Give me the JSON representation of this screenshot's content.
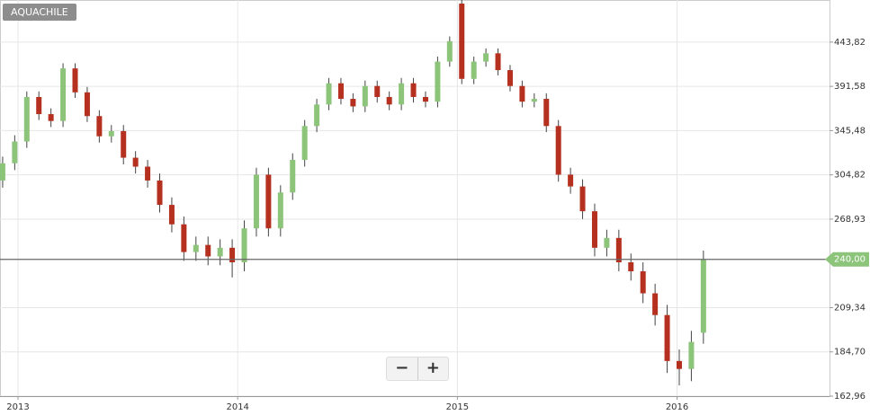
{
  "chart_data": {
    "type": "candlestick",
    "title": "AQUACHILE",
    "log_y": true,
    "grid": true,
    "up_color": "#8cc47a",
    "down_color": "#b5301f",
    "last_color": "#8cc47a",
    "xlim": [
      2012.918,
      2016.694
    ],
    "xticks": [
      2013,
      2014,
      2015,
      2016
    ],
    "ylim": [
      162.96,
      500
    ],
    "yticks": [
      {
        "value": 162.96,
        "label": "162,96"
      },
      {
        "value": 184.7,
        "label": "184,70"
      },
      {
        "value": 209.34,
        "label": "209,34"
      },
      {
        "value": 268.93,
        "label": "268,93"
      },
      {
        "value": 304.82,
        "label": "304,82"
      },
      {
        "value": 345.48,
        "label": "345,48"
      },
      {
        "value": 391.58,
        "label": "391,58"
      },
      {
        "value": 443.82,
        "label": "443,82"
      }
    ],
    "last": {
      "value": 240,
      "label": "240,00"
    },
    "x": [
      2012.93,
      2012.985,
      2013.04,
      2013.095,
      2013.15,
      2013.205,
      2013.26,
      2013.315,
      2013.37,
      2013.425,
      2013.48,
      2013.535,
      2013.59,
      2013.645,
      2013.7,
      2013.755,
      2013.81,
      2013.865,
      2013.92,
      2013.975,
      2014.03,
      2014.085,
      2014.14,
      2014.195,
      2014.25,
      2014.305,
      2014.36,
      2014.415,
      2014.47,
      2014.525,
      2014.58,
      2014.635,
      2014.69,
      2014.745,
      2014.8,
      2014.855,
      2014.91,
      2014.965,
      2015.02,
      2015.075,
      2015.13,
      2015.185,
      2015.24,
      2015.295,
      2015.35,
      2015.405,
      2015.46,
      2015.515,
      2015.57,
      2015.625,
      2015.68,
      2015.735,
      2015.79,
      2015.845,
      2015.9,
      2015.955,
      2016.01,
      2016.065,
      2016.12
    ],
    "open": [
      300,
      315,
      335,
      380,
      362,
      355,
      412,
      385,
      360,
      340,
      345,
      320,
      312,
      300,
      280,
      265,
      245,
      250,
      242,
      248,
      238,
      262,
      305,
      262,
      290,
      318,
      350,
      372,
      395,
      378,
      370,
      392,
      380,
      372,
      395,
      380,
      375,
      420,
      495,
      400,
      420,
      430,
      410,
      392,
      375,
      378,
      350,
      305,
      295,
      275,
      248,
      255,
      238,
      232,
      218,
      205,
      180,
      176,
      195
    ],
    "high": [
      321,
      341,
      386,
      386,
      368,
      418,
      418,
      391,
      366,
      351,
      351,
      326,
      318,
      306,
      286,
      271,
      256,
      256,
      254,
      254,
      268,
      311,
      311,
      296,
      324,
      356,
      378,
      401,
      401,
      384,
      398,
      398,
      386,
      401,
      401,
      386,
      426,
      451,
      500,
      426,
      436,
      436,
      416,
      398,
      384,
      384,
      356,
      311,
      301,
      281,
      261,
      261,
      244,
      238,
      224,
      211,
      186,
      196,
      246
    ],
    "low": [
      294,
      309,
      329,
      356,
      349,
      349,
      379,
      354,
      334,
      334,
      314,
      306,
      294,
      274,
      259,
      239,
      239,
      236,
      236,
      228,
      232,
      256,
      256,
      256,
      284,
      312,
      344,
      366,
      372,
      364,
      364,
      374,
      366,
      366,
      374,
      369,
      369,
      414,
      394,
      394,
      414,
      404,
      386,
      369,
      369,
      344,
      299,
      289,
      269,
      242,
      242,
      232,
      226,
      212,
      199,
      174,
      168,
      170,
      189
    ],
    "close": [
      315,
      335,
      380,
      362,
      355,
      412,
      385,
      360,
      340,
      345,
      320,
      312,
      300,
      280,
      265,
      245,
      250,
      242,
      248,
      238,
      262,
      305,
      262,
      290,
      318,
      350,
      372,
      395,
      378,
      370,
      392,
      380,
      372,
      395,
      380,
      375,
      420,
      445,
      400,
      420,
      430,
      410,
      392,
      375,
      378,
      350,
      305,
      295,
      275,
      248,
      255,
      238,
      232,
      218,
      205,
      180,
      176,
      190,
      240
    ]
  }
}
